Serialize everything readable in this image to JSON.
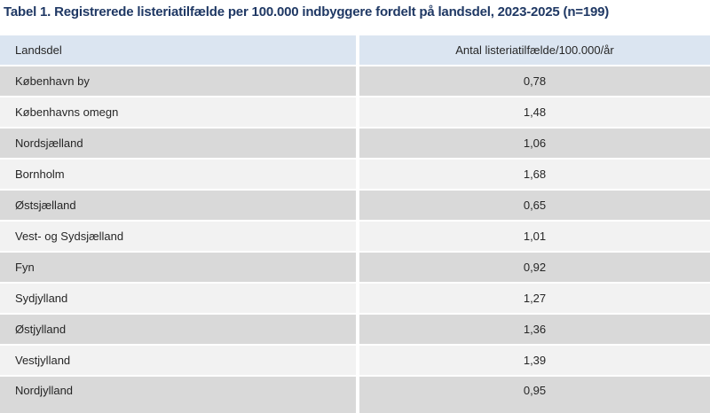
{
  "title": "Tabel 1. Registrerede listeriatilfælde per 100.000 indbyggere fordelt på landsdel, 2023-2025 (n=199)",
  "table": {
    "columns": [
      "Landsdel",
      "Antal listeriatilfælde/100.000/år"
    ],
    "rows": [
      {
        "landsdel": "København by",
        "value": "0,78"
      },
      {
        "landsdel": "Københavns omegn",
        "value": "1,48"
      },
      {
        "landsdel": "Nordsjælland",
        "value": "1,06"
      },
      {
        "landsdel": "Bornholm",
        "value": "1,68"
      },
      {
        "landsdel": "Østsjælland",
        "value": "0,65"
      },
      {
        "landsdel": "Vest- og Sydsjælland",
        "value": "1,01"
      },
      {
        "landsdel": "Fyn",
        "value": "0,92"
      },
      {
        "landsdel": "Sydjylland",
        "value": "1,27"
      },
      {
        "landsdel": "Østjylland",
        "value": "1,36"
      },
      {
        "landsdel": "Vestjylland",
        "value": "1,39"
      },
      {
        "landsdel": "Nordjylland",
        "value": "0,95"
      }
    ]
  },
  "colors": {
    "title": "#1F3864",
    "text": "#262626",
    "header_bg": "#DBE5F1",
    "row_dark": "#D9D9D9",
    "row_light": "#F2F2F2"
  },
  "chart_data": {
    "type": "table",
    "title": "Tabel 1. Registrerede listeriatilfælde per 100.000 indbyggere fordelt på landsdel, 2023-2025 (n=199)",
    "columns": [
      "Landsdel",
      "Antal listeriatilfælde/100.000/år"
    ],
    "categories": [
      "København by",
      "Københavns omegn",
      "Nordsjælland",
      "Bornholm",
      "Østsjælland",
      "Vest- og Sydsjælland",
      "Fyn",
      "Sydjylland",
      "Østjylland",
      "Vestjylland",
      "Nordjylland"
    ],
    "values": [
      0.78,
      1.48,
      1.06,
      1.68,
      0.65,
      1.01,
      0.92,
      1.27,
      1.36,
      1.39,
      0.95
    ],
    "n": 199
  }
}
